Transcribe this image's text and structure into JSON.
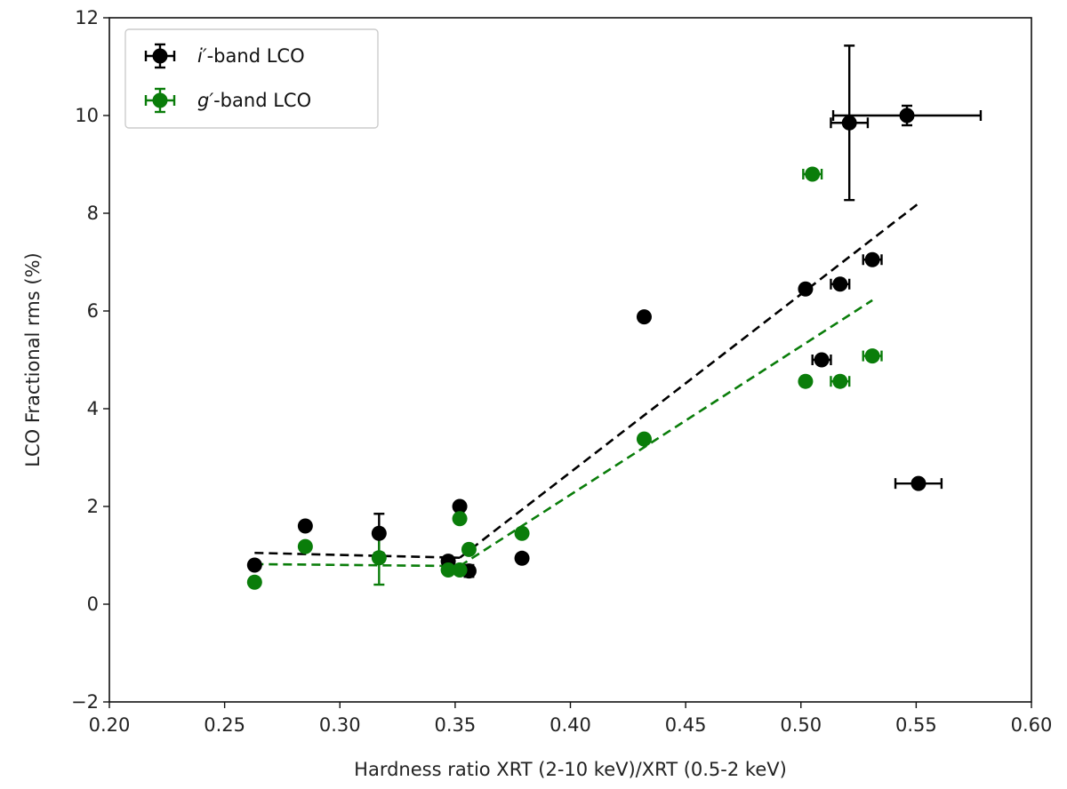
{
  "chart_data": {
    "type": "scatter",
    "title": "",
    "xlabel": "Hardness ratio XRT (2-10 keV)/XRT (0.5-2 keV)",
    "ylabel": "LCO Fractional rms (%)",
    "xlim": [
      0.2,
      0.6
    ],
    "ylim": [
      -2,
      12
    ],
    "xticks": [
      "0.20",
      "0.25",
      "0.30",
      "0.35",
      "0.40",
      "0.45",
      "0.50",
      "0.55",
      "0.60"
    ],
    "yticks": [
      "−2",
      "0",
      "2",
      "4",
      "6",
      "8",
      "10",
      "12"
    ],
    "grid": false,
    "legend_position": "top-left",
    "series": [
      {
        "name": "i′-band LCO",
        "legend_italic": "i′",
        "legend_rest": "-band LCO",
        "color": "#000000",
        "points": [
          {
            "x": 0.263,
            "y": 0.8,
            "xerr": 0.0,
            "yerr": 0.0
          },
          {
            "x": 0.285,
            "y": 1.6,
            "xerr": 0.0,
            "yerr": 0.0
          },
          {
            "x": 0.317,
            "y": 1.45,
            "xerr": 0.0,
            "yerr": 0.4
          },
          {
            "x": 0.347,
            "y": 0.88,
            "xerr": 0.0,
            "yerr": 0.0
          },
          {
            "x": 0.352,
            "y": 2.0,
            "xerr": 0.0,
            "yerr": 0.0
          },
          {
            "x": 0.356,
            "y": 0.68,
            "xerr": 0.0,
            "yerr": 0.12
          },
          {
            "x": 0.379,
            "y": 0.94,
            "xerr": 0.0,
            "yerr": 0.0
          },
          {
            "x": 0.432,
            "y": 5.88,
            "xerr": 0.0,
            "yerr": 0.0
          },
          {
            "x": 0.502,
            "y": 6.45,
            "xerr": 0.0,
            "yerr": 0.0
          },
          {
            "x": 0.509,
            "y": 5.0,
            "xerr": 0.004,
            "yerr": 0.0
          },
          {
            "x": 0.517,
            "y": 6.55,
            "xerr": 0.004,
            "yerr": 0.0
          },
          {
            "x": 0.521,
            "y": 9.85,
            "xerr": 0.008,
            "yerr": 1.58
          },
          {
            "x": 0.531,
            "y": 7.05,
            "xerr": 0.004,
            "yerr": 0.0
          },
          {
            "x": 0.546,
            "y": 10.0,
            "xerr": 0.032,
            "yerr": 0.2
          },
          {
            "x": 0.551,
            "y": 2.47,
            "xerr": 0.01,
            "yerr": 0.0
          }
        ],
        "fit": [
          {
            "x1": 0.263,
            "y1": 1.05,
            "x2": 0.352,
            "y2": 0.95
          },
          {
            "x1": 0.352,
            "y1": 0.95,
            "x2": 0.551,
            "y2": 8.2
          }
        ]
      },
      {
        "name": "g′-band LCO",
        "legend_italic": "g′",
        "legend_rest": "-band LCO",
        "color": "#0a7d0a",
        "points": [
          {
            "x": 0.263,
            "y": 0.45,
            "xerr": 0.0,
            "yerr": 0.0
          },
          {
            "x": 0.285,
            "y": 1.18,
            "xerr": 0.0,
            "yerr": 0.0
          },
          {
            "x": 0.317,
            "y": 0.95,
            "xerr": 0.0,
            "yerr": 0.55
          },
          {
            "x": 0.347,
            "y": 0.7,
            "xerr": 0.0,
            "yerr": 0.0
          },
          {
            "x": 0.352,
            "y": 0.7,
            "xerr": 0.0,
            "yerr": 0.0
          },
          {
            "x": 0.352,
            "y": 1.75,
            "xerr": 0.0,
            "yerr": 0.0
          },
          {
            "x": 0.356,
            "y": 1.12,
            "xerr": 0.0,
            "yerr": 0.0
          },
          {
            "x": 0.379,
            "y": 1.45,
            "xerr": 0.0,
            "yerr": 0.0
          },
          {
            "x": 0.432,
            "y": 3.38,
            "xerr": 0.0,
            "yerr": 0.0
          },
          {
            "x": 0.502,
            "y": 4.56,
            "xerr": 0.0,
            "yerr": 0.0
          },
          {
            "x": 0.505,
            "y": 8.8,
            "xerr": 0.004,
            "yerr": 0.0
          },
          {
            "x": 0.517,
            "y": 4.56,
            "xerr": 0.004,
            "yerr": 0.0
          },
          {
            "x": 0.531,
            "y": 5.08,
            "xerr": 0.004,
            "yerr": 0.0
          }
        ],
        "fit": [
          {
            "x1": 0.263,
            "y1": 0.82,
            "x2": 0.352,
            "y2": 0.78
          },
          {
            "x1": 0.352,
            "y1": 0.78,
            "x2": 0.531,
            "y2": 6.22
          }
        ]
      }
    ]
  }
}
